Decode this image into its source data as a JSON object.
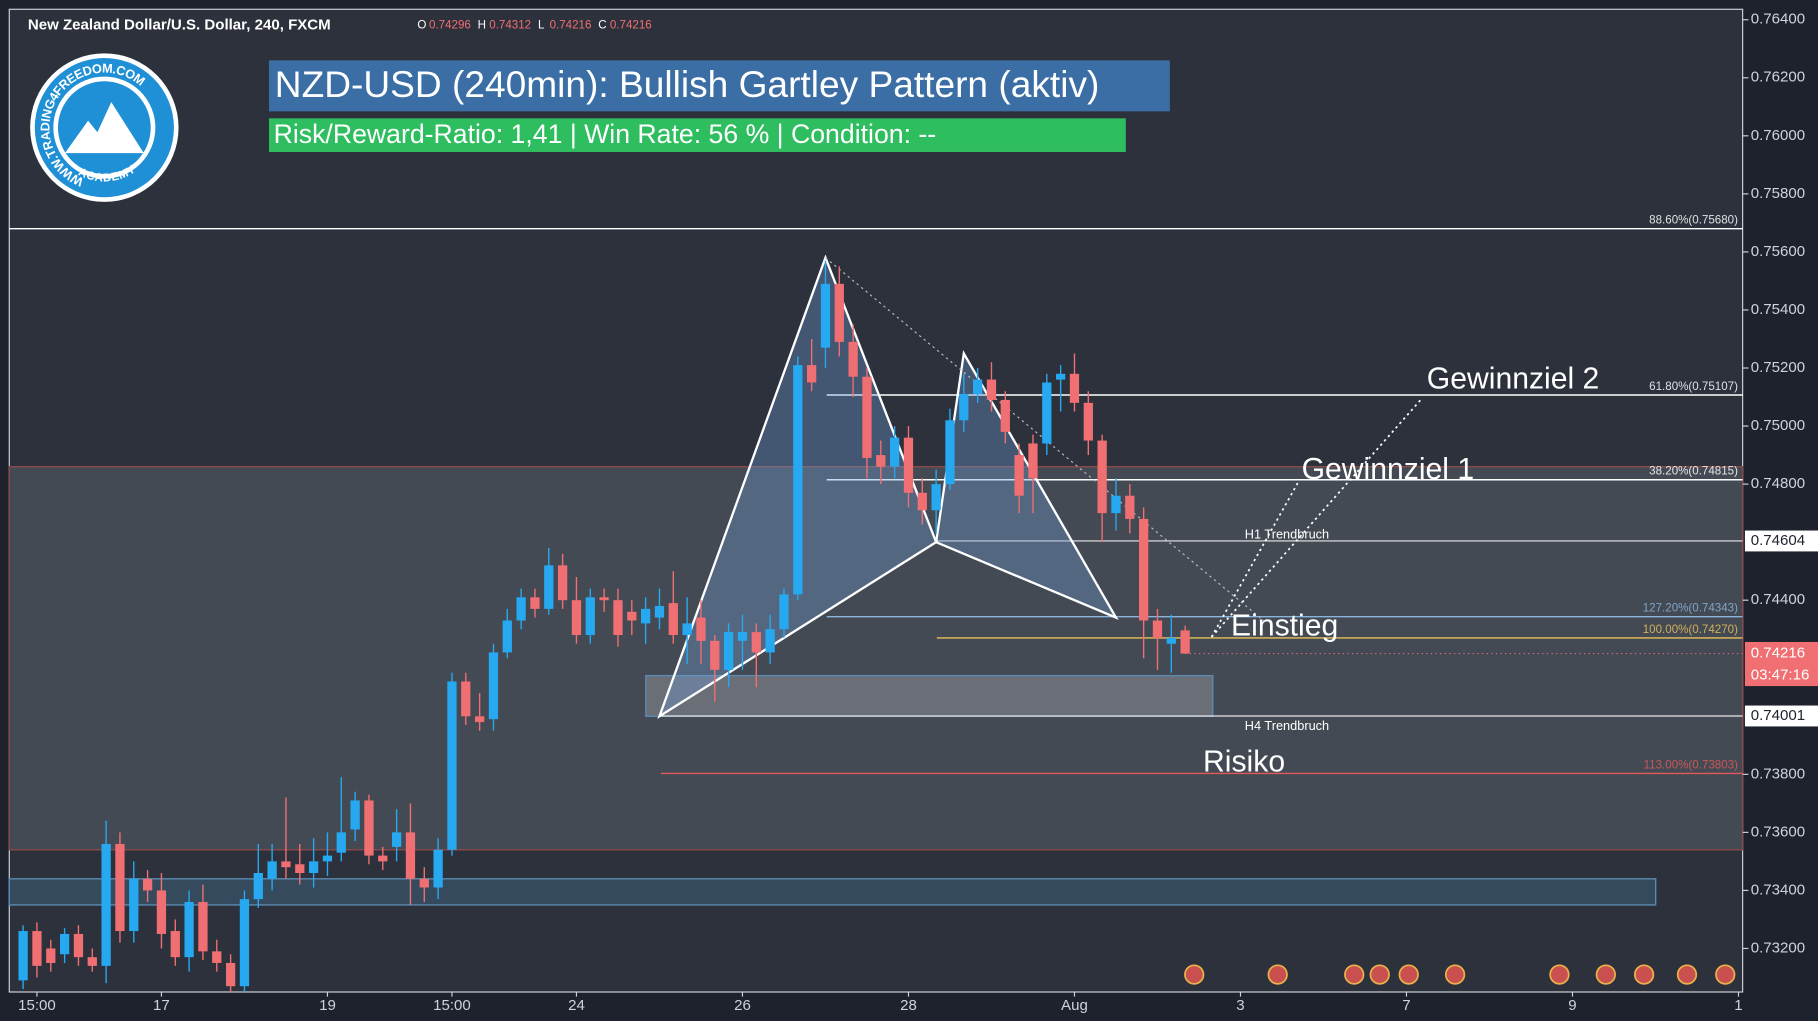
{
  "header": {
    "symbol": "New Zealand Dollar/U.S. Dollar, 240, FXCM",
    "ohlc_letters": [
      "O",
      "H",
      "L",
      "C"
    ]
  },
  "banner": {
    "title": "NZD-USD (240min): Bullish Gartley Pattern (aktiv)",
    "subtitle": "Risk/Reward-Ratio: 1,41 | Win Rate: 56 % | Condition: --"
  },
  "logo": {
    "ring_text": "WWW.TRADING4FREEDOM.COM",
    "bottom_text": "ACADEMY"
  },
  "chart_data": {
    "type": "candlestick",
    "up_color": "#26a9f0",
    "down_color": "#ef6f72",
    "open": [
      0.7309,
      0.7326,
      0.732,
      0.7318,
      0.7325,
      0.7317,
      0.7314,
      0.7356,
      0.7326,
      0.7344,
      0.734,
      0.7326,
      0.7317,
      0.7336,
      0.7319,
      0.7315,
      0.7307,
      0.7337,
      0.7344,
      0.735,
      0.7349,
      0.7346,
      0.735,
      0.7353,
      0.7361,
      0.7371,
      0.7352,
      0.7355,
      0.736,
      0.7344,
      0.7341,
      0.7354,
      0.7412,
      0.74,
      0.7399,
      0.7422,
      0.7433,
      0.7441,
      0.7437,
      0.7452,
      0.744,
      0.7428,
      0.7441,
      0.744,
      0.7436,
      0.7432,
      0.7434,
      0.7439,
      0.7428,
      0.7434,
      0.7426,
      0.7416,
      0.7426,
      0.7429,
      0.7422,
      0.743,
      0.7442,
      0.7521,
      0.7527,
      0.7549,
      0.7529,
      0.7517,
      0.749,
      0.7486,
      0.7496,
      0.7477,
      0.7471,
      0.748,
      0.7502,
      0.7511,
      0.7516,
      0.7509,
      0.749,
      0.7494,
      0.7494,
      0.7516,
      0.7518,
      0.7508,
      0.7495,
      0.747,
      0.7476,
      0.7468,
      0.7433,
      0.7425,
      0.74296
    ],
    "high": [
      0.7328,
      0.7329,
      0.7323,
      0.7327,
      0.7328,
      0.732,
      0.7364,
      0.736,
      0.735,
      0.7347,
      0.7346,
      0.733,
      0.734,
      0.7342,
      0.7323,
      0.7318,
      0.734,
      0.7356,
      0.7356,
      0.7372,
      0.7356,
      0.7358,
      0.736,
      0.7379,
      0.7374,
      0.7373,
      0.7355,
      0.7368,
      0.737,
      0.7348,
      0.7358,
      0.7415,
      0.7415,
      0.7408,
      0.7425,
      0.7437,
      0.7444,
      0.7444,
      0.7458,
      0.7456,
      0.7448,
      0.7444,
      0.7444,
      0.7444,
      0.744,
      0.7441,
      0.7444,
      0.745,
      0.7441,
      0.744,
      0.7428,
      0.7432,
      0.7435,
      0.7432,
      0.7435,
      0.7444,
      0.7524,
      0.753,
      0.7557,
      0.7555,
      0.7535,
      0.752,
      0.7495,
      0.75,
      0.75,
      0.7482,
      0.7485,
      0.7506,
      0.7518,
      0.752,
      0.7522,
      0.7512,
      0.7494,
      0.7497,
      0.7518,
      0.7521,
      0.7525,
      0.7512,
      0.7497,
      0.7482,
      0.748,
      0.7472,
      0.7437,
      0.7435,
      0.74312
    ],
    "low": [
      0.7306,
      0.731,
      0.7312,
      0.7315,
      0.7314,
      0.7312,
      0.7308,
      0.7322,
      0.7322,
      0.7336,
      0.732,
      0.7314,
      0.7312,
      0.7316,
      0.7312,
      0.7305,
      0.7305,
      0.7334,
      0.734,
      0.7344,
      0.7342,
      0.7341,
      0.7345,
      0.735,
      0.7357,
      0.7349,
      0.7347,
      0.735,
      0.7335,
      0.7336,
      0.7337,
      0.7352,
      0.7397,
      0.7395,
      0.7395,
      0.742,
      0.743,
      0.7434,
      0.7435,
      0.7437,
      0.7425,
      0.7425,
      0.7436,
      0.7424,
      0.7428,
      0.7425,
      0.743,
      0.7425,
      0.7418,
      0.7418,
      0.7405,
      0.741,
      0.7416,
      0.741,
      0.7418,
      0.7427,
      0.744,
      0.7512,
      0.752,
      0.7524,
      0.751,
      0.7482,
      0.748,
      0.7482,
      0.7472,
      0.7466,
      0.7463,
      0.7478,
      0.7498,
      0.7508,
      0.7505,
      0.7494,
      0.747,
      0.747,
      0.749,
      0.7505,
      0.7505,
      0.749,
      0.746,
      0.7464,
      0.7463,
      0.742,
      0.7416,
      0.7415,
      0.74216
    ],
    "close": [
      0.7326,
      0.7314,
      0.7315,
      0.7325,
      0.7317,
      0.7314,
      0.7356,
      0.7326,
      0.7344,
      0.734,
      0.7325,
      0.7317,
      0.7336,
      0.7319,
      0.7315,
      0.7307,
      0.7337,
      0.7346,
      0.735,
      0.7348,
      0.7346,
      0.735,
      0.7352,
      0.736,
      0.7371,
      0.7352,
      0.735,
      0.736,
      0.7344,
      0.7341,
      0.7354,
      0.7412,
      0.74,
      0.7398,
      0.7422,
      0.7433,
      0.7441,
      0.7437,
      0.7452,
      0.744,
      0.7428,
      0.7441,
      0.744,
      0.7428,
      0.7433,
      0.7437,
      0.7438,
      0.7428,
      0.7432,
      0.7426,
      0.7416,
      0.7429,
      0.7429,
      0.7422,
      0.743,
      0.7442,
      0.7521,
      0.7515,
      0.7549,
      0.7529,
      0.7517,
      0.7489,
      0.7486,
      0.7496,
      0.7477,
      0.7471,
      0.748,
      0.7502,
      0.7511,
      0.7516,
      0.7509,
      0.7498,
      0.7476,
      0.7482,
      0.7515,
      0.7518,
      0.7508,
      0.7495,
      0.747,
      0.7476,
      0.7468,
      0.7433,
      0.7427,
      0.7427,
      0.74216
    ],
    "xlim": [
      -1,
      124.3
    ],
    "xticks": [
      {
        "value": 1,
        "label": "15:00"
      },
      {
        "value": 10,
        "label": "17"
      },
      {
        "value": 22,
        "label": "19"
      },
      {
        "value": 31,
        "label": "15:00"
      },
      {
        "value": 40,
        "label": "24"
      },
      {
        "value": 52,
        "label": "26"
      },
      {
        "value": 64,
        "label": "28"
      },
      {
        "value": 76,
        "label": "Aug"
      },
      {
        "value": 88,
        "label": "3"
      },
      {
        "value": 100,
        "label": "7"
      },
      {
        "value": 112,
        "label": "9"
      },
      {
        "value": 124,
        "label": "1"
      }
    ],
    "ylim": [
      0.7305,
      0.76436
    ],
    "yticks": [
      {
        "value": 0.764,
        "label": "0.76400"
      },
      {
        "value": 0.762,
        "label": "0.76200"
      },
      {
        "value": 0.76,
        "label": "0.76000"
      },
      {
        "value": 0.758,
        "label": "0.75800"
      },
      {
        "value": 0.756,
        "label": "0.75600"
      },
      {
        "value": 0.754,
        "label": "0.75400"
      },
      {
        "value": 0.752,
        "label": "0.75200"
      },
      {
        "value": 0.75,
        "label": "0.75000"
      },
      {
        "value": 0.748,
        "label": "0.74800"
      },
      {
        "value": 0.744,
        "label": "0.74400"
      },
      {
        "value": 0.738,
        "label": "0.73800"
      },
      {
        "value": 0.736,
        "label": "0.73600"
      },
      {
        "value": 0.734,
        "label": "0.73400"
      },
      {
        "value": 0.732,
        "label": "0.73200"
      }
    ],
    "countdown": "03:47:16",
    "fib_levels": [
      {
        "value": 0.7568,
        "label": "88.60%(0.75680)",
        "color": "#ffffff"
      },
      {
        "value": 0.75107,
        "label": "61.80%(0.75107)",
        "color": "#ffffff"
      },
      {
        "value": 0.74815,
        "label": "38.20%(0.74815)",
        "color": "#ffffff"
      },
      {
        "value": 0.74343,
        "label": "127.20%(0.74343)",
        "color": "#8ab4dc"
      },
      {
        "value": 0.7427,
        "label": "100.00%(0.74270)",
        "color": "#e8c15a"
      },
      {
        "value": 0.73803,
        "label": "113.00%(0.73803)",
        "color": "#e05a5a"
      }
    ],
    "trend_lines": [
      {
        "value": 0.74604,
        "name": "H1 Trendbruch"
      },
      {
        "value": 0.74001,
        "name": "H4 Trendbruch"
      }
    ],
    "zones": [
      {
        "from": 0.7486,
        "to": 0.7354,
        "color": "#5a5f68"
      },
      {
        "from": 0.7344,
        "to": 0.7335,
        "color": "#3f5f7a"
      },
      {
        "from": 0.7414,
        "to": 0.74,
        "color": "#8a8d93"
      }
    ],
    "pattern": {
      "index": [
        46,
        58,
        66,
        68,
        79
      ],
      "price": [
        0.74,
        0.7558,
        0.746,
        0.7525,
        0.7434
      ]
    },
    "annotations": [
      "Gewinnziel 2",
      "Gewinnziel 1",
      "Einstieg",
      "Risiko"
    ]
  }
}
